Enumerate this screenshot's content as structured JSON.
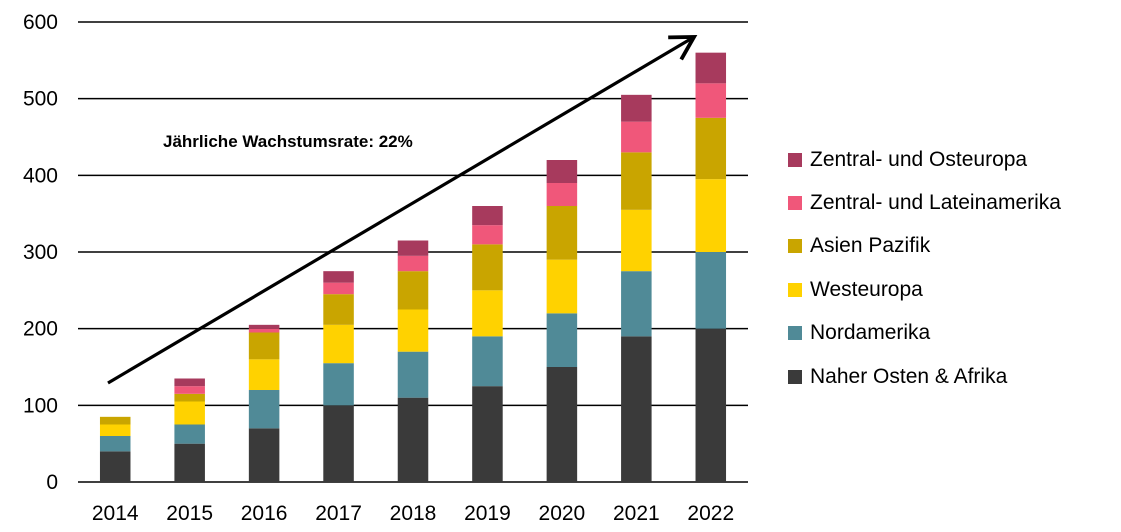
{
  "chart_data": {
    "type": "bar",
    "stacked": true,
    "categories": [
      "2014",
      "2015",
      "2016",
      "2017",
      "2018",
      "2019",
      "2020",
      "2021",
      "2022"
    ],
    "ylim": [
      0,
      600
    ],
    "yticks": [
      "0",
      "100",
      "200",
      "300",
      "400",
      "500",
      "600"
    ],
    "grid": true,
    "legend_position": "right",
    "annotation": "Jährliche Wachstumsrate: 22%",
    "series": [
      {
        "name": "Naher Osten & Afrika",
        "color": "#3a3a3a",
        "values": [
          40,
          50,
          70,
          100,
          110,
          125,
          150,
          190,
          200
        ]
      },
      {
        "name": "Nordamerika",
        "color": "#508a97",
        "values": [
          20,
          25,
          50,
          55,
          60,
          65,
          70,
          85,
          100
        ]
      },
      {
        "name": "Westeuropa",
        "color": "#ffd200",
        "values": [
          15,
          30,
          40,
          50,
          55,
          60,
          70,
          80,
          95
        ]
      },
      {
        "name": "Asien Pazifik",
        "color": "#c9a500",
        "values": [
          10,
          10,
          35,
          40,
          50,
          60,
          70,
          75,
          80
        ]
      },
      {
        "name": "Zentral- und Lateinamerika",
        "color": "#f0577a",
        "values": [
          0,
          10,
          5,
          15,
          20,
          25,
          30,
          40,
          45
        ]
      },
      {
        "name": "Zentral- und Osteuropa",
        "color": "#a73a5d",
        "values": [
          0,
          10,
          5,
          15,
          20,
          25,
          30,
          35,
          40
        ]
      }
    ]
  }
}
